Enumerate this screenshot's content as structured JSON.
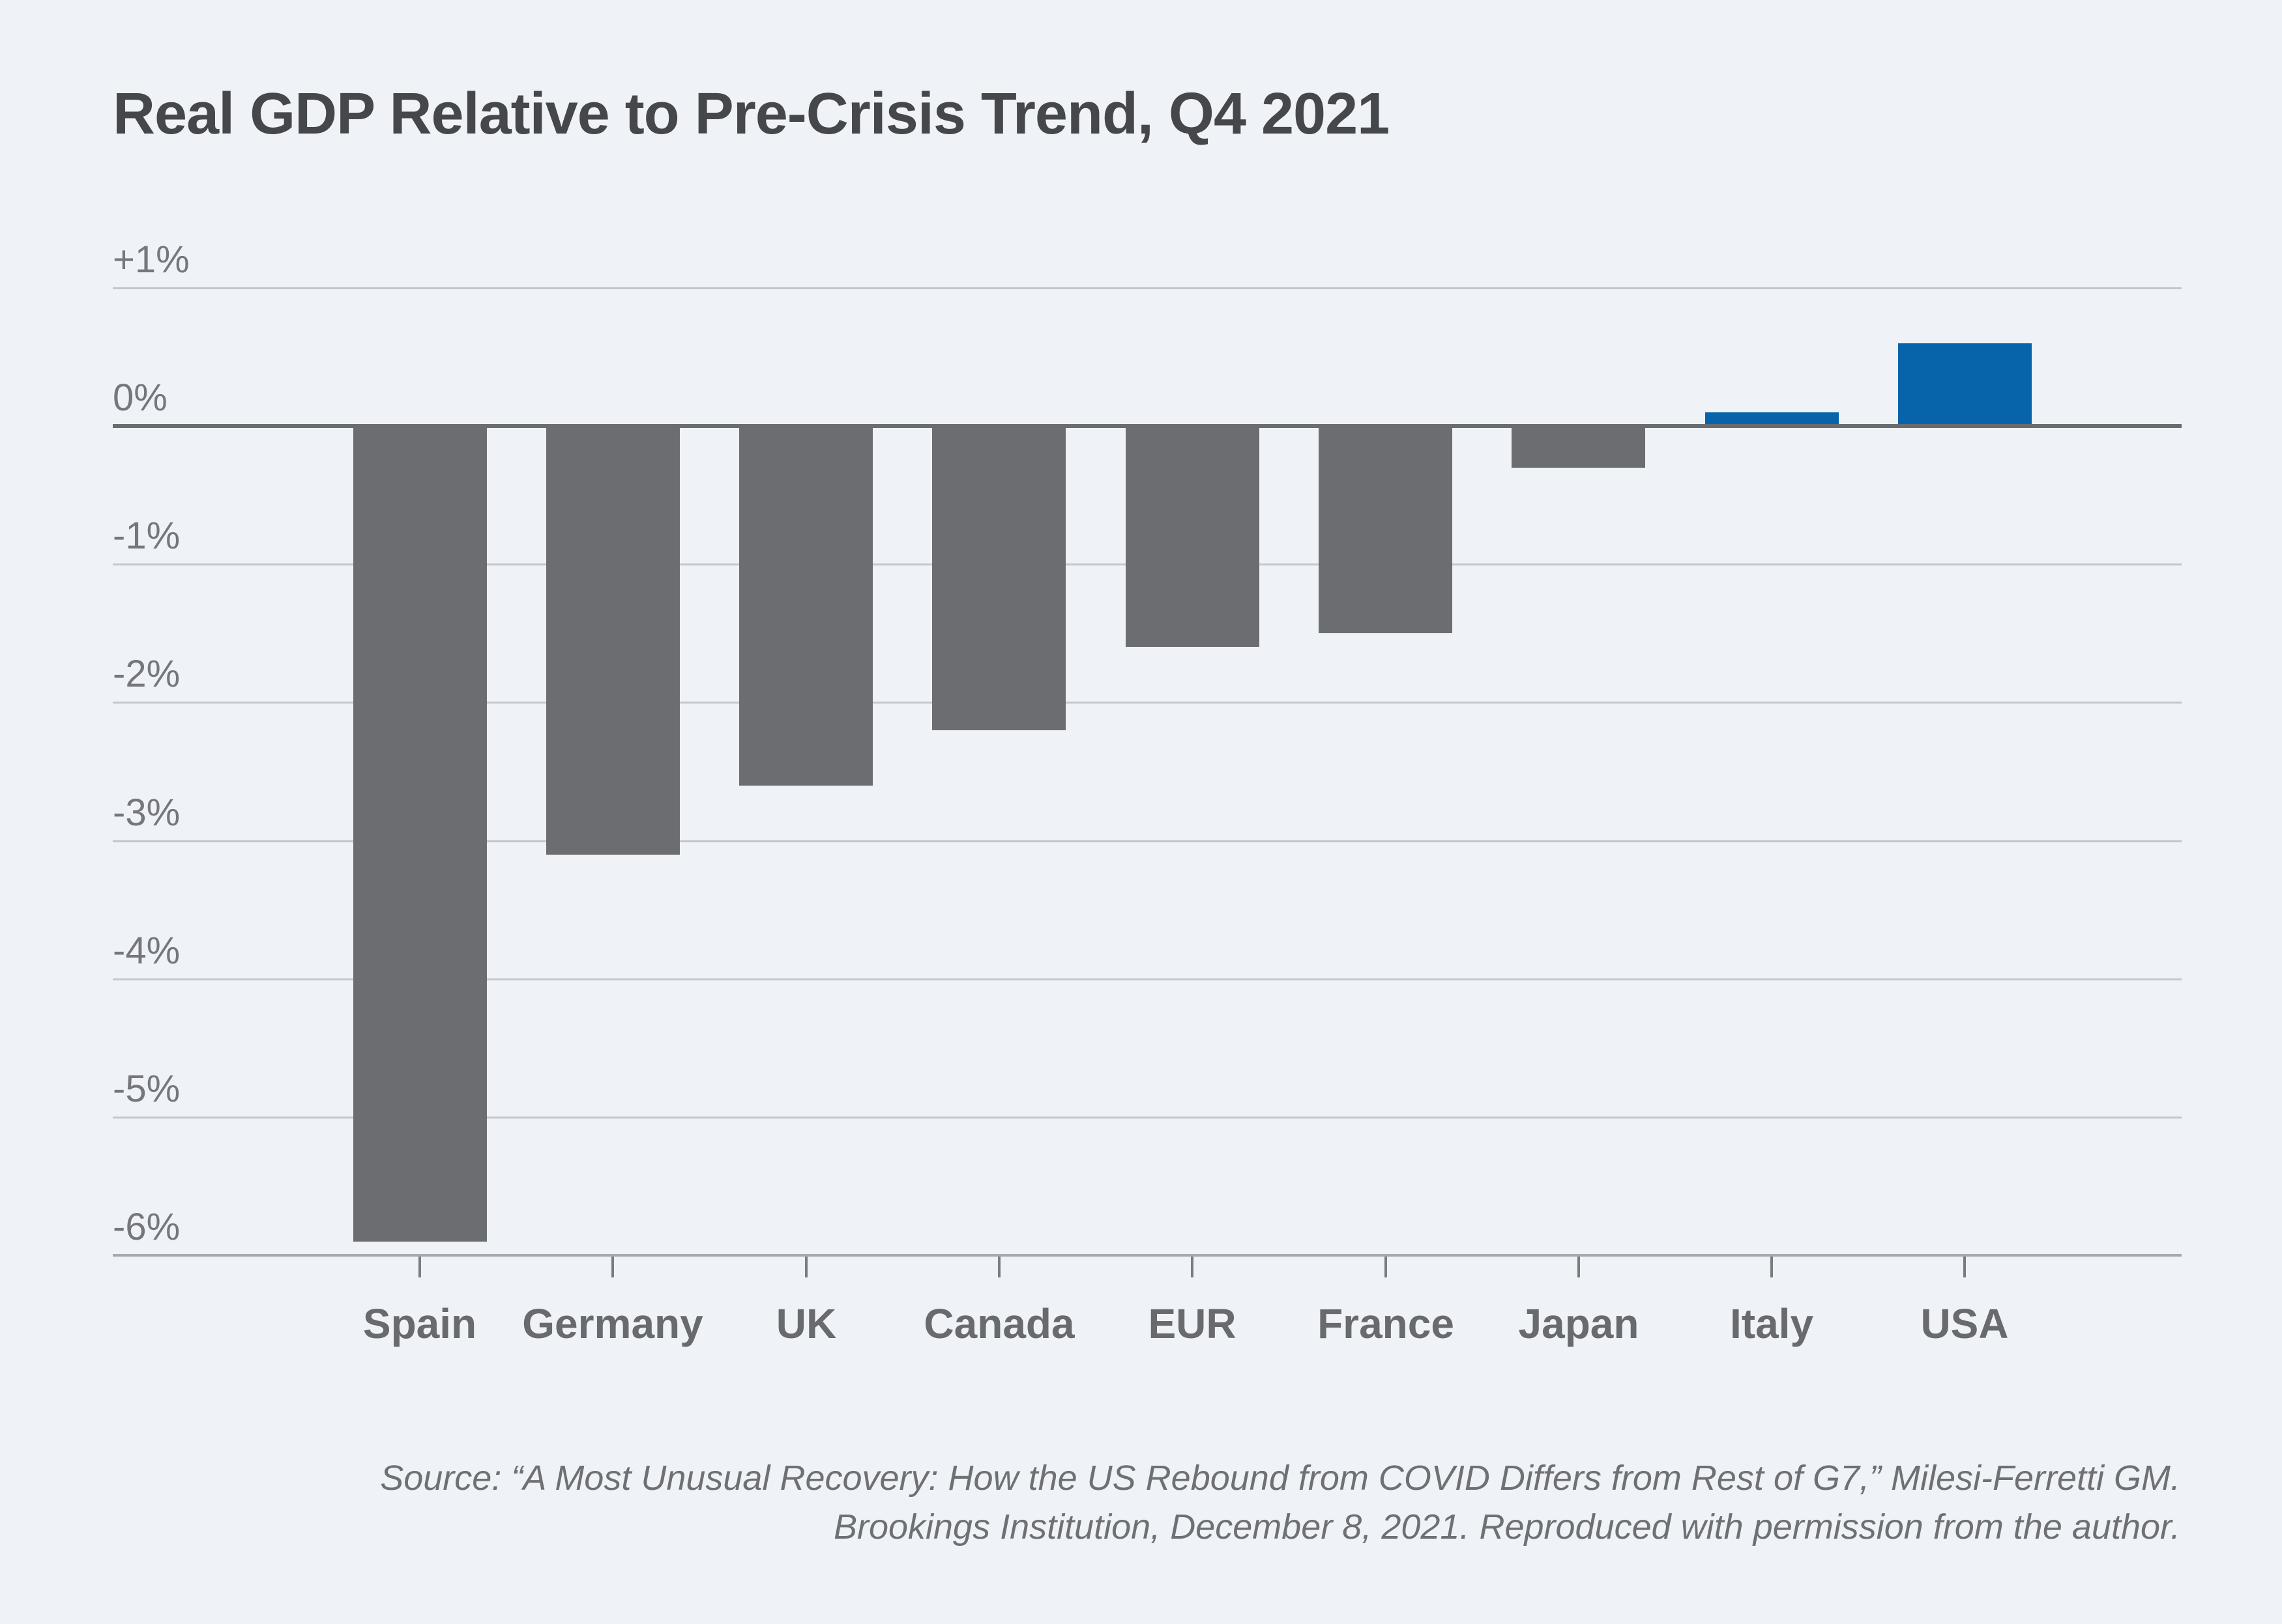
{
  "page": {
    "background_color": "#EFF3F8"
  },
  "chart": {
    "title": "Real GDP Relative to Pre-Crisis Trend, Q4 2021",
    "colors": {
      "bar_default": "#6C6D71",
      "bar_highlight": "#0764AA",
      "gridline": "#C3C7CB",
      "zero_line": "#6B6C70",
      "axis_line": "#A6A9AD",
      "title_text": "#46474B",
      "y_label_text": "#75777C",
      "category_text": "#696A6E",
      "source_text": "#6E7074"
    },
    "y_axis_ticks": [
      {
        "label": "+1%",
        "value": 1
      },
      {
        "label": "0%",
        "value": 0
      },
      {
        "label": "-1%",
        "value": -1
      },
      {
        "label": "-2%",
        "value": -2
      },
      {
        "label": "-3%",
        "value": -3
      },
      {
        "label": "-4%",
        "value": -4
      },
      {
        "label": "-5%",
        "value": -5
      },
      {
        "label": "-6%",
        "value": -6
      }
    ]
  },
  "chart_data": {
    "type": "bar",
    "title": "Real GDP Relative to Pre-Crisis Trend, Q4 2021",
    "categories": [
      "Spain",
      "Germany",
      "UK",
      "Canada",
      "EUR",
      "France",
      "Japan",
      "Italy",
      "USA"
    ],
    "values": [
      -5.9,
      -3.1,
      -2.6,
      -2.2,
      -1.6,
      -1.5,
      -0.3,
      0.1,
      0.6
    ],
    "highlighted_categories": [
      "Italy",
      "USA"
    ],
    "xlabel": "",
    "ylabel": "",
    "unit": "%",
    "ylim": [
      -6,
      1.25
    ],
    "grid": true,
    "legend": "none"
  },
  "source": {
    "line1": "Source: “A Most Unusual Recovery: How the US Rebound from COVID Differs from Rest of G7,” Milesi-Ferretti GM.",
    "line2": "Brookings Institution, December 8, 2021. Reproduced with permission from the author."
  }
}
